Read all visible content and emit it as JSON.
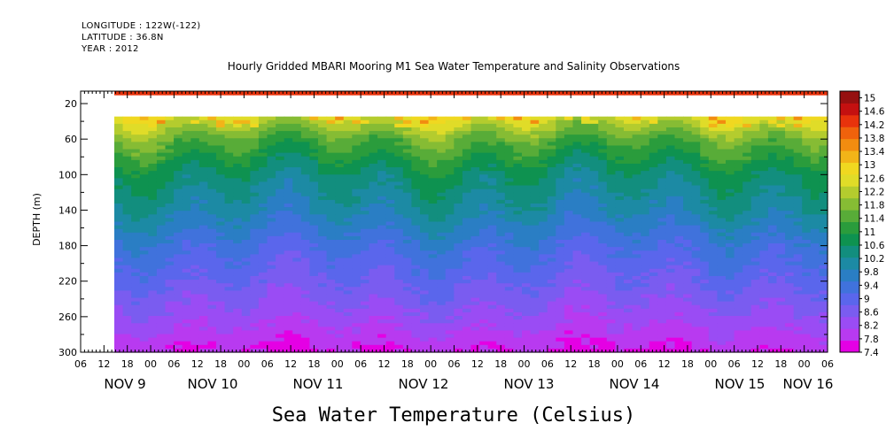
{
  "header": {
    "longitude": "LONGITUDE : 122W(-122)",
    "latitude": "LATITUDE : 36.8N",
    "year": "YEAR : 2012"
  },
  "chart_data": {
    "type": "heatmap",
    "title": "Hourly Gridded MBARI Mooring M1 Sea Water Temperature and Salinity Observations",
    "xlabel": "",
    "ylabel": "DEPTH (m)",
    "bottom_title": "Sea Water Temperature (Celsius)",
    "x_hour_ticks": [
      "06",
      "12",
      "18",
      "00",
      "06",
      "12",
      "18",
      "00",
      "06",
      "12",
      "18",
      "00",
      "06",
      "12",
      "18",
      "00",
      "06",
      "12",
      "18",
      "00",
      "06",
      "12",
      "18",
      "00",
      "06",
      "12",
      "18",
      "00",
      "06",
      "12",
      "18",
      "00",
      "06"
    ],
    "x_day_labels": [
      "NOV  9",
      "NOV 10",
      "NOV 11",
      "NOV 12",
      "NOV 13",
      "NOV 14",
      "NOV 15",
      "NOV 16"
    ],
    "y_ticks": [
      20,
      60,
      100,
      140,
      180,
      220,
      260,
      300
    ],
    "ylim": [
      300,
      6
    ],
    "colorbar": {
      "labels": [
        "15",
        "14.6",
        "14.2",
        "13.8",
        "13.4",
        "13",
        "12.6",
        "12.2",
        "11.8",
        "11.4",
        "11",
        "10.6",
        "10.2",
        "9.8",
        "9.4",
        "9",
        "8.6",
        "8.2",
        "7.8",
        "7.4"
      ],
      "range": [
        7.4,
        15.2
      ],
      "colors": [
        "#e400e4",
        "#b83af0",
        "#9a4cf4",
        "#7a5cf0",
        "#5a66ec",
        "#4072dc",
        "#2a7ec4",
        "#1c8aa4",
        "#128e7e",
        "#0e9250",
        "#2a9c3c",
        "#58ac38",
        "#86bc34",
        "#b4cc2e",
        "#e0dc28",
        "#f0d820",
        "#f2b418",
        "#f28c10",
        "#f0620c",
        "#e8320c",
        "#c41010",
        "#961010"
      ]
    },
    "depth_gap_m": [
      12,
      36
    ],
    "data_start": "NOV 9 12:00",
    "profile": [
      {
        "depth": 6,
        "temp": 14.4
      },
      {
        "depth": 12,
        "temp": 14.2
      },
      {
        "depth": 36,
        "temp": 12.5
      },
      {
        "depth": 60,
        "temp": 11.5
      },
      {
        "depth": 100,
        "temp": 10.5
      },
      {
        "depth": 140,
        "temp": 10.0
      },
      {
        "depth": 180,
        "temp": 9.3
      },
      {
        "depth": 220,
        "temp": 8.8
      },
      {
        "depth": 260,
        "temp": 8.3
      },
      {
        "depth": 300,
        "temp": 7.7
      }
    ]
  }
}
